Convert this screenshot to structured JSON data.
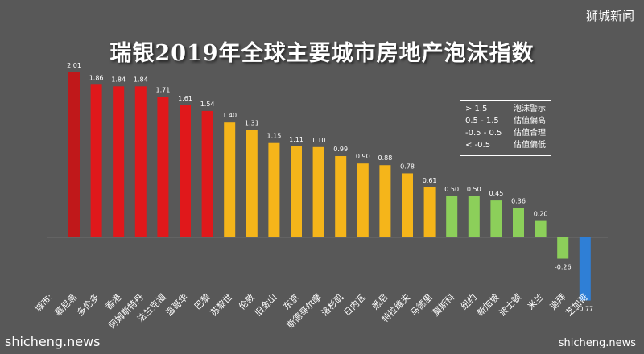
{
  "watermarks": {
    "top_right": "狮城新闻",
    "bottom_left": "shicheng.news",
    "bottom_right": "shicheng.news"
  },
  "legend": [
    {
      "range": "> 1.5",
      "label": "泡沫警示"
    },
    {
      "range": "0.5 - 1.5",
      "label": "估值偏高"
    },
    {
      "range": "-0.5 - 0.5",
      "label": "估值合理"
    },
    {
      "range": "< -0.5",
      "label": "估值偏低"
    }
  ],
  "colors": {
    "bubble_risk": "#e0181b",
    "overvalued": "#f5b51a",
    "fair": "#8ccf5a",
    "undervalued": "#2f7fd6",
    "first_bar": "#c0181a",
    "background": "#585858"
  },
  "chart_data": {
    "type": "bar",
    "title": "瑞银2019年全球主要城市房地产泡沫指数",
    "axis_category_label": "城市:",
    "categories": [
      "慕尼黑",
      "多伦多",
      "香港",
      "阿姆斯特丹",
      "法兰克福",
      "温哥华",
      "巴黎",
      "苏黎世",
      "伦敦",
      "旧金山",
      "东京",
      "斯德哥尔摩",
      "洛杉矶",
      "日内瓦",
      "悉尼",
      "特拉维夫",
      "马德里",
      "莫斯科",
      "纽约",
      "新加坡",
      "波士顿",
      "米兰",
      "迪拜",
      "芝加哥"
    ],
    "values": [
      2.01,
      1.86,
      1.84,
      1.84,
      1.71,
      1.61,
      1.54,
      1.4,
      1.31,
      1.15,
      1.11,
      1.1,
      0.99,
      0.9,
      0.88,
      0.78,
      0.61,
      0.5,
      0.5,
      0.45,
      0.36,
      0.2,
      -0.26,
      -0.77
    ],
    "value_labels": [
      "2.01",
      "1.86",
      "1.84",
      "1.84",
      "1.71",
      "1.61",
      "1.54",
      "1.40",
      "1.31",
      "1.15",
      "1.11",
      "1.10",
      "0.99",
      "0.90",
      "0.88",
      "0.78",
      "0.61",
      "0.50",
      "0.50",
      "0.45",
      "0.36",
      "0.20",
      "-0.26",
      "-0.77"
    ],
    "color_groups": [
      "first_bar",
      "bubble_risk",
      "bubble_risk",
      "bubble_risk",
      "bubble_risk",
      "bubble_risk",
      "bubble_risk",
      "overvalued",
      "overvalued",
      "overvalued",
      "overvalued",
      "overvalued",
      "overvalued",
      "overvalued",
      "overvalued",
      "overvalued",
      "overvalued",
      "fair",
      "fair",
      "fair",
      "fair",
      "fair",
      "fair",
      "undervalued"
    ],
    "ylim": [
      -0.9,
      2.3
    ],
    "grid": false,
    "legend_position": "top-right"
  }
}
